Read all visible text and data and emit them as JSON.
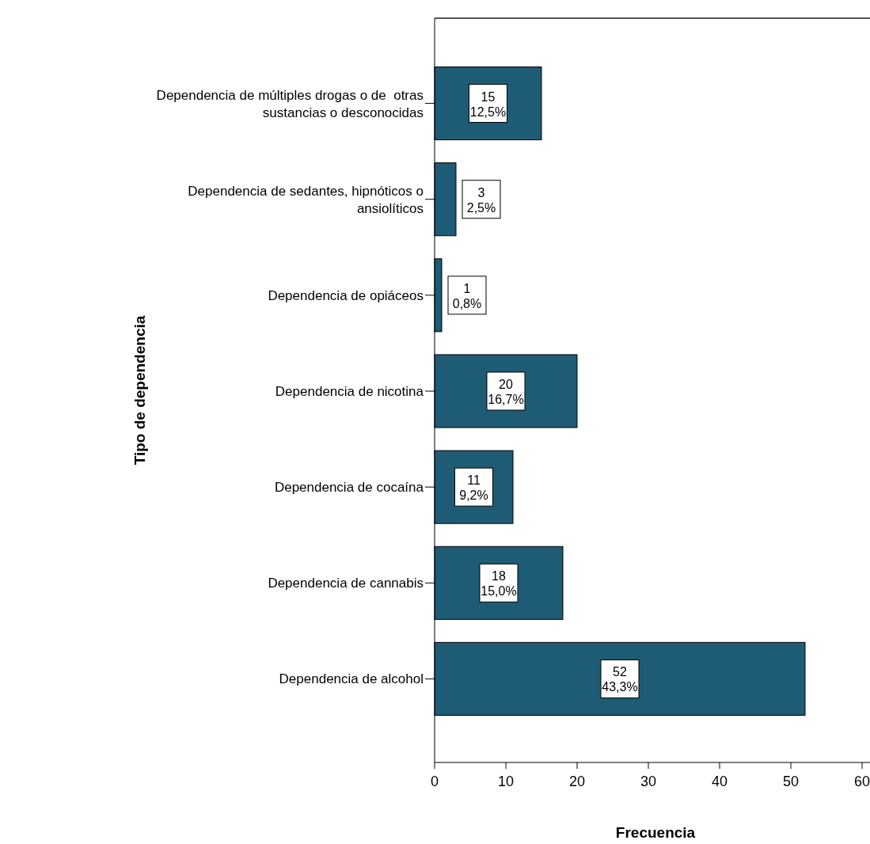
{
  "chart_data": {
    "type": "bar",
    "orientation": "horizontal",
    "xlabel": "Frecuencia",
    "ylabel": "Tipo de dependencia",
    "categories": [
      "Dependencia de múltiples drogas o de  otras sustancias o desconocidas",
      "Dependencia de sedantes, hipnóticos o ansiolíticos",
      "Dependencia de opiáceos",
      "Dependencia de nicotina",
      "Dependencia de cocaína",
      "Dependencia de cannabis",
      "Dependencia de alcohol"
    ],
    "values": [
      15,
      3,
      1,
      20,
      11,
      18,
      52
    ],
    "value_labels": [
      "15\n12,5%",
      "3\n2,5%",
      "1\n0,8%",
      "20\n16,7%",
      "11\n9,2%",
      "18\n15,0%",
      "52\n43,3%"
    ],
    "color": "#1e5c75",
    "xlim": [
      0,
      62
    ],
    "xticks": [
      0,
      10,
      20,
      30,
      40,
      50,
      60
    ],
    "grid": false
  }
}
